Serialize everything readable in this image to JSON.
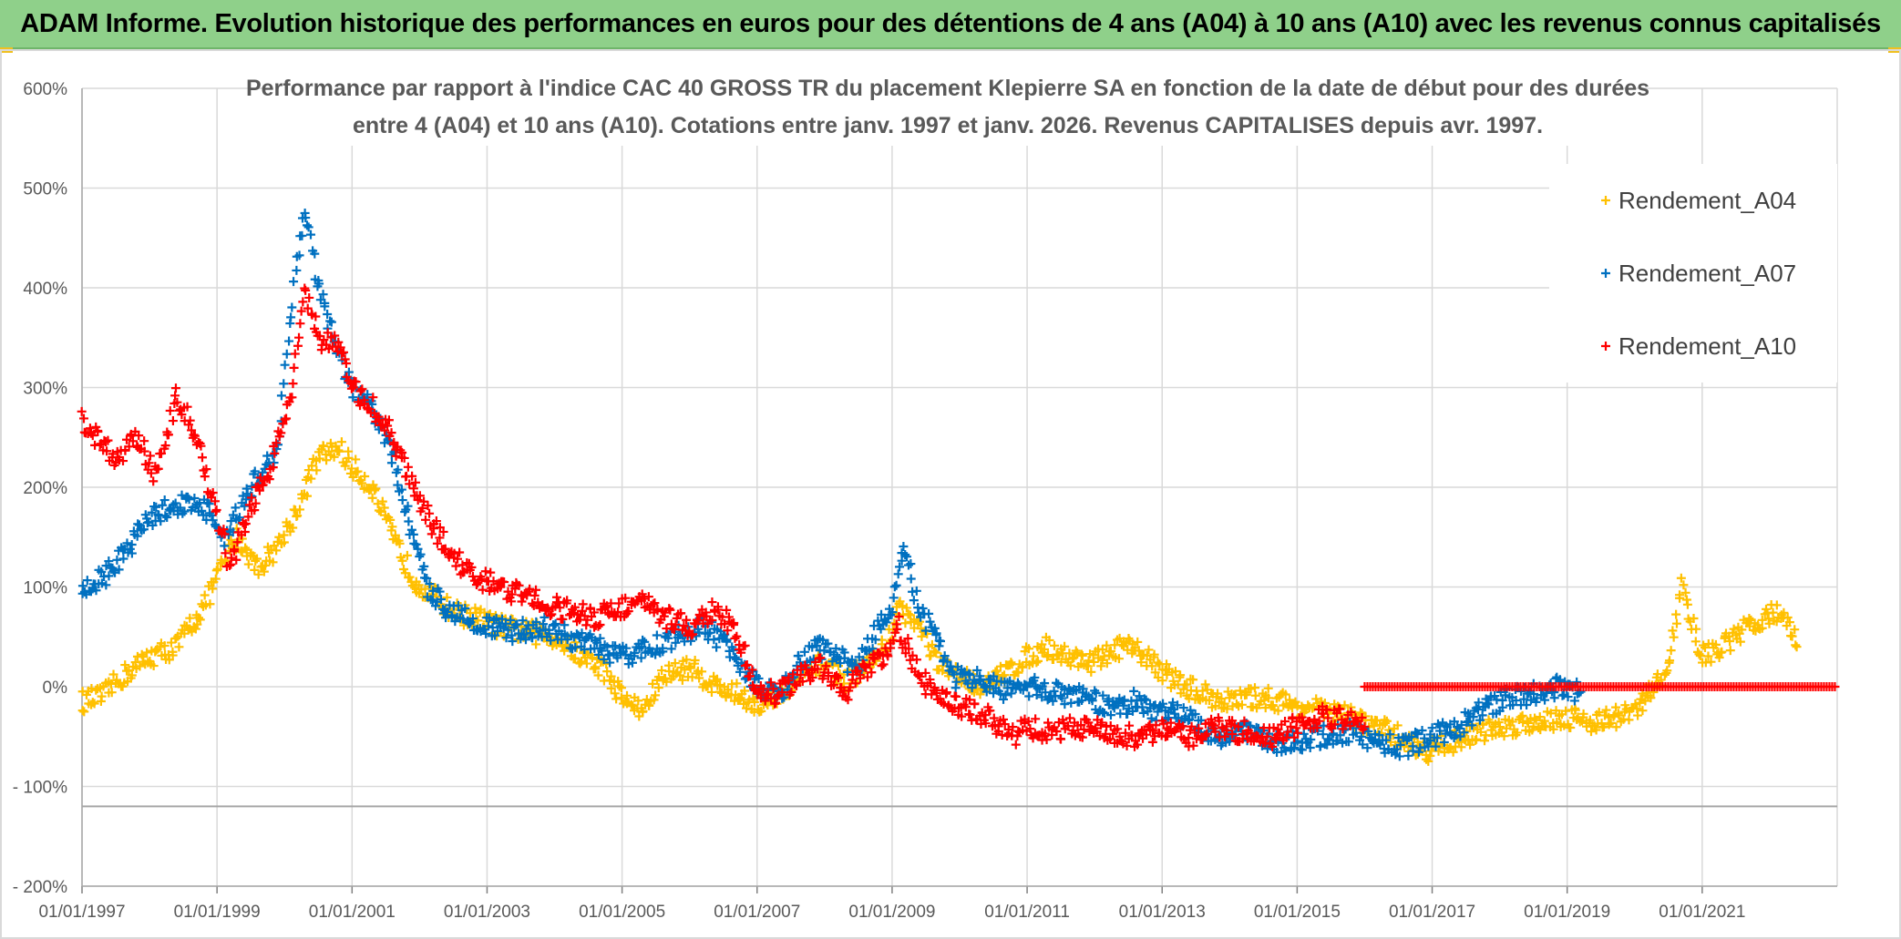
{
  "header": {
    "title": "ADAM Informe. Evolution historique des performances en euros pour des détentions de 4 ans (A04) à 10 ans (A10) avec les revenus connus capitalisés"
  },
  "colors": {
    "banner": "#8fd08a",
    "A04": "#ffc000",
    "A07": "#0070c0",
    "A10": "#ff0000",
    "grid": "#d9d9d9",
    "text": "#595959"
  },
  "chart_data": {
    "type": "scatter",
    "title_lines": [
      "Performance par rapport à l'indice CAC 40 GROSS TR  du placement Klepierre SA en fonction de la date de début pour des durées",
      "entre 4 (A04) et 10 ans (A10). Cotations entre janv. 1997 et janv. 2026. Revenus CAPITALISES depuis avr. 1997."
    ],
    "x_ticks": [
      "01/01/1997",
      "01/01/1999",
      "01/01/2001",
      "01/01/2003",
      "01/01/2005",
      "01/01/2007",
      "01/01/2009",
      "01/01/2011",
      "01/01/2013",
      "01/01/2015",
      "01/01/2017",
      "01/01/2019",
      "01/01/2021"
    ],
    "xlim": [
      1997.0,
      2023.0
    ],
    "y_ticks": [
      "600%",
      "500%",
      "400%",
      "300%",
      "200%",
      "100%",
      "0%",
      "- 100%",
      "- 200%"
    ],
    "ylim": [
      -200,
      600
    ],
    "reference_line_y": -120,
    "grid": true,
    "legend_position": "top-right",
    "series": [
      {
        "name": "Rendement_A04",
        "color": "#ffc000",
        "x": [
          1997.0,
          1997.3,
          1997.6,
          1998.0,
          1998.4,
          1998.8,
          1999.0,
          1999.3,
          1999.6,
          1999.9,
          2000.2,
          2000.5,
          2000.8,
          2001.0,
          2001.3,
          2001.6,
          2001.9,
          2002.2,
          2002.5,
          2002.8,
          2003.2,
          2003.6,
          2004.0,
          2004.4,
          2004.7,
          2005.0,
          2005.3,
          2005.6,
          2006.0,
          2006.4,
          2006.8,
          2007.1,
          2007.4,
          2007.7,
          2008.0,
          2008.3,
          2008.6,
          2008.9,
          2009.1,
          2009.4,
          2009.7,
          2010.0,
          2010.4,
          2010.8,
          2011.0,
          2011.3,
          2011.6,
          2012.0,
          2012.4,
          2012.8,
          2013.1,
          2013.5,
          2014.0,
          2014.5,
          2015.0,
          2015.5,
          2016.0,
          2016.5,
          2016.9,
          2017.3,
          2017.7,
          2018.1,
          2018.5,
          2019.0,
          2019.4,
          2019.8,
          2020.0,
          2020.3,
          2020.5,
          2020.7,
          2021.0,
          2021.3,
          2021.6,
          2021.9,
          2022.2,
          2022.4
        ],
        "y": [
          -15,
          -10,
          10,
          30,
          40,
          80,
          110,
          150,
          120,
          140,
          180,
          230,
          240,
          220,
          200,
          150,
          110,
          90,
          75,
          70,
          60,
          55,
          50,
          30,
          20,
          -10,
          -25,
          10,
          20,
          0,
          -10,
          -20,
          -5,
          10,
          25,
          5,
          20,
          40,
          80,
          60,
          20,
          10,
          0,
          20,
          30,
          40,
          30,
          25,
          40,
          30,
          10,
          -5,
          -15,
          -10,
          -20,
          -25,
          -35,
          -50,
          -65,
          -55,
          -45,
          -40,
          -35,
          -30,
          -35,
          -30,
          -25,
          0,
          20,
          100,
          30,
          40,
          55,
          70,
          75,
          40
        ]
      },
      {
        "name": "Rendement_A07",
        "color": "#0070c0",
        "x": [
          1997.0,
          1997.3,
          1997.6,
          1998.0,
          1998.3,
          1998.6,
          1998.9,
          1999.1,
          1999.4,
          1999.7,
          1999.9,
          2000.1,
          2000.3,
          2000.5,
          2000.8,
          2001.0,
          2001.3,
          2001.6,
          2001.9,
          2002.1,
          2002.4,
          2002.7,
          2003.0,
          2003.4,
          2003.8,
          2004.2,
          2004.6,
          2005.0,
          2005.4,
          2005.8,
          2006.2,
          2006.6,
          2007.0,
          2007.3,
          2007.6,
          2007.9,
          2008.2,
          2008.5,
          2008.8,
          2009.0,
          2009.2,
          2009.4,
          2009.6,
          2009.9,
          2010.3,
          2010.7,
          2011.0,
          2011.4,
          2011.8,
          2012.2,
          2012.6,
          2013.0,
          2013.4,
          2013.8,
          2014.2,
          2014.6,
          2015.0,
          2015.4,
          2015.8,
          2016.2,
          2016.6,
          2017.0,
          2017.4,
          2017.8,
          2018.2,
          2018.6,
          2018.9,
          2019.2
        ],
        "y": [
          95,
          110,
          130,
          170,
          180,
          185,
          175,
          140,
          190,
          220,
          240,
          380,
          480,
          400,
          330,
          300,
          280,
          230,
          150,
          100,
          80,
          70,
          60,
          55,
          60,
          50,
          40,
          30,
          40,
          50,
          60,
          40,
          0,
          -10,
          20,
          40,
          30,
          20,
          60,
          80,
          140,
          70,
          60,
          10,
          5,
          -5,
          0,
          -5,
          -10,
          -20,
          -15,
          -25,
          -30,
          -50,
          -45,
          -55,
          -55,
          -50,
          -45,
          -55,
          -60,
          -50,
          -40,
          -20,
          -10,
          -5,
          0,
          -5
        ]
      },
      {
        "name": "Rendement_A10",
        "color": "#ff0000",
        "x": [
          1997.0,
          1997.2,
          1997.5,
          1997.8,
          1998.1,
          1998.4,
          1998.7,
          1999.0,
          1999.2,
          1999.5,
          1999.8,
          2000.1,
          2000.3,
          2000.5,
          2000.8,
          2001.0,
          2001.3,
          2001.6,
          2001.9,
          2002.2,
          2002.5,
          2002.8,
          2003.2,
          2003.6,
          2004.0,
          2004.3,
          2004.6,
          2005.0,
          2005.3,
          2005.6,
          2006.0,
          2006.3,
          2006.6,
          2007.0,
          2007.3,
          2007.6,
          2008.0,
          2008.3,
          2008.6,
          2008.9,
          2009.1,
          2009.4,
          2009.7,
          2010.0,
          2010.4,
          2010.8,
          2011.0,
          2011.4,
          2011.8,
          2012.2,
          2012.6,
          2013.0,
          2013.4,
          2013.8,
          2014.2,
          2014.6,
          2015.0,
          2015.4,
          2015.8,
          2016.0
        ],
        "y": [
          270,
          250,
          230,
          250,
          210,
          290,
          250,
          170,
          120,
          180,
          220,
          300,
          400,
          350,
          340,
          300,
          280,
          250,
          200,
          160,
          130,
          110,
          100,
          90,
          80,
          75,
          70,
          80,
          85,
          70,
          60,
          75,
          65,
          0,
          -10,
          10,
          20,
          -5,
          15,
          30,
          60,
          10,
          -10,
          -20,
          -30,
          -50,
          -40,
          -45,
          -40,
          -45,
          -50,
          -45,
          -50,
          -40,
          -45,
          -50,
          -40,
          -30,
          -35,
          -40
        ]
      },
      {
        "name": "Rendement_A10_zero",
        "legend": false,
        "color": "#ff0000",
        "x_range": [
          2016.0,
          2023.0
        ],
        "y": 0
      }
    ]
  }
}
